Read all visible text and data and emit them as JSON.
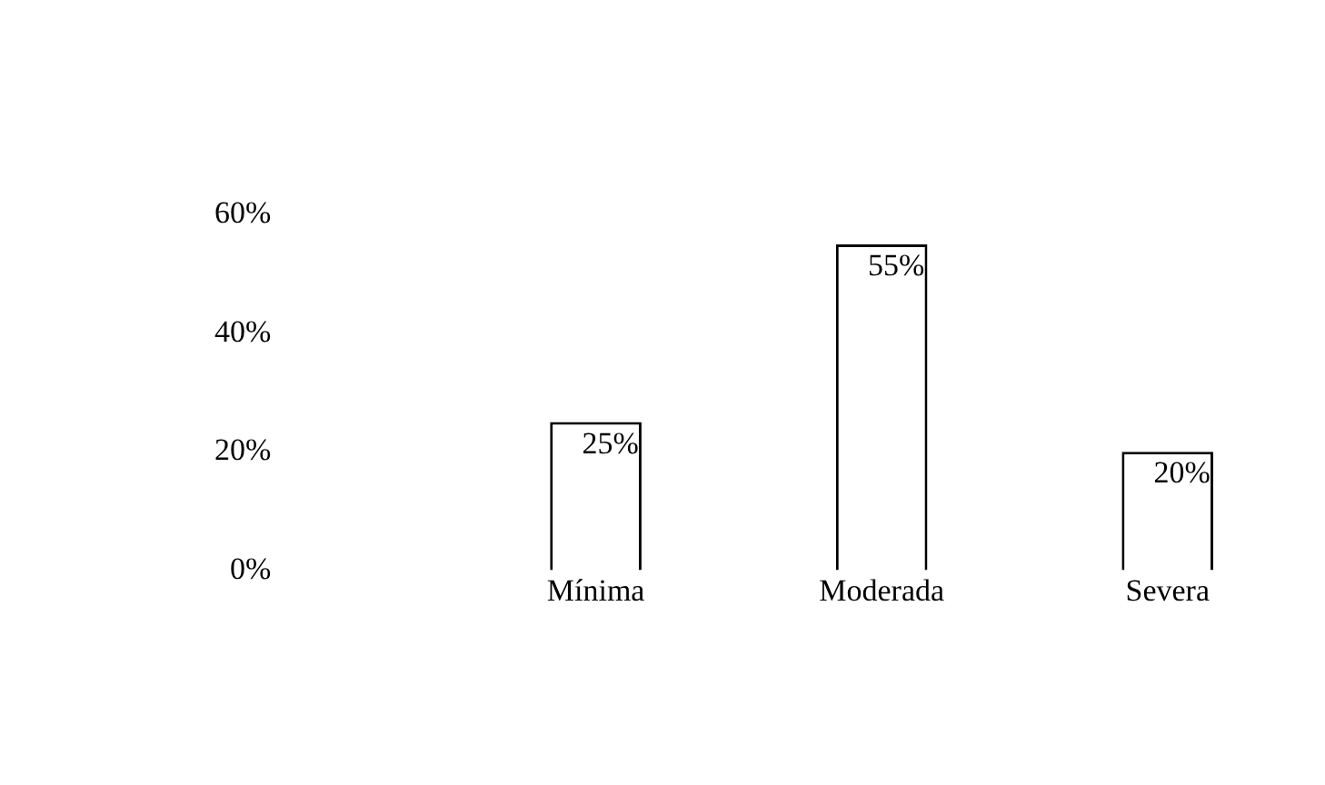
{
  "chart_data": {
    "type": "bar",
    "categories": [
      "Mínima",
      "Moderada",
      "Severa"
    ],
    "values": [
      25,
      55,
      20
    ],
    "color": "#ffffff",
    "ylim": [
      0,
      60
    ],
    "yticks": [
      {
        "value": 0,
        "label": "0%"
      },
      {
        "value": 20,
        "label": "20%"
      },
      {
        "value": 40,
        "label": "40%"
      },
      {
        "value": 60,
        "label": "60%"
      }
    ],
    "value_labels": [
      "25%",
      "55%",
      "20%"
    ],
    "grid": false,
    "legend": false
  }
}
